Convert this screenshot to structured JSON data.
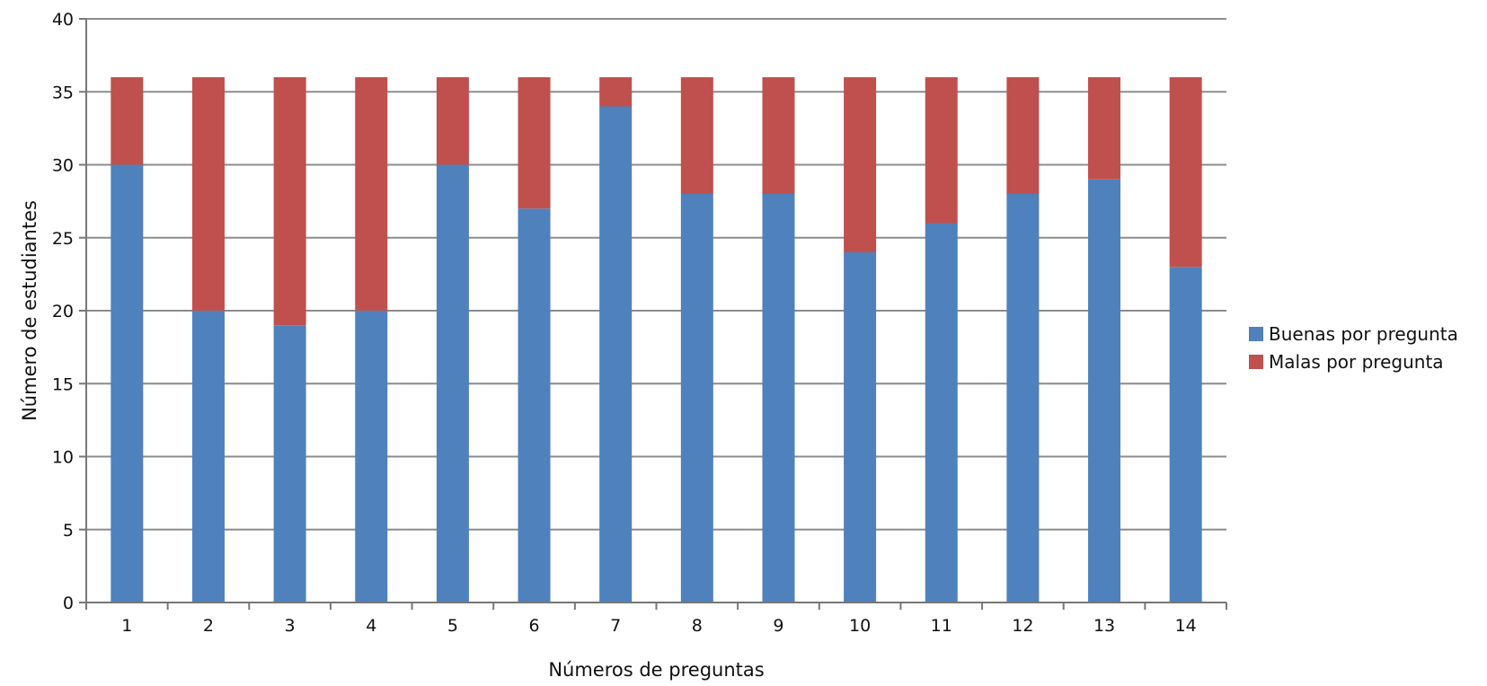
{
  "chart_data": {
    "type": "bar",
    "stacked": true,
    "title": "",
    "xlabel": "Números de preguntas",
    "ylabel": "Número de estudiantes",
    "categories": [
      "1",
      "2",
      "3",
      "4",
      "5",
      "6",
      "7",
      "8",
      "9",
      "10",
      "11",
      "12",
      "13",
      "14"
    ],
    "series": [
      {
        "name": "Buenas por pregunta",
        "color": "#4f81bd",
        "values": [
          30,
          20,
          19,
          20,
          30,
          27,
          34,
          28,
          28,
          24,
          26,
          28,
          29,
          23
        ]
      },
      {
        "name": "Malas por pregunta",
        "color": "#c0504d",
        "values": [
          6,
          16,
          17,
          16,
          6,
          9,
          2,
          8,
          8,
          12,
          10,
          8,
          7,
          13
        ]
      }
    ],
    "ylim": [
      0,
      40
    ],
    "yticks": [
      0,
      5,
      10,
      15,
      20,
      25,
      30,
      35,
      40
    ],
    "grid": true,
    "legend_position": "right"
  }
}
